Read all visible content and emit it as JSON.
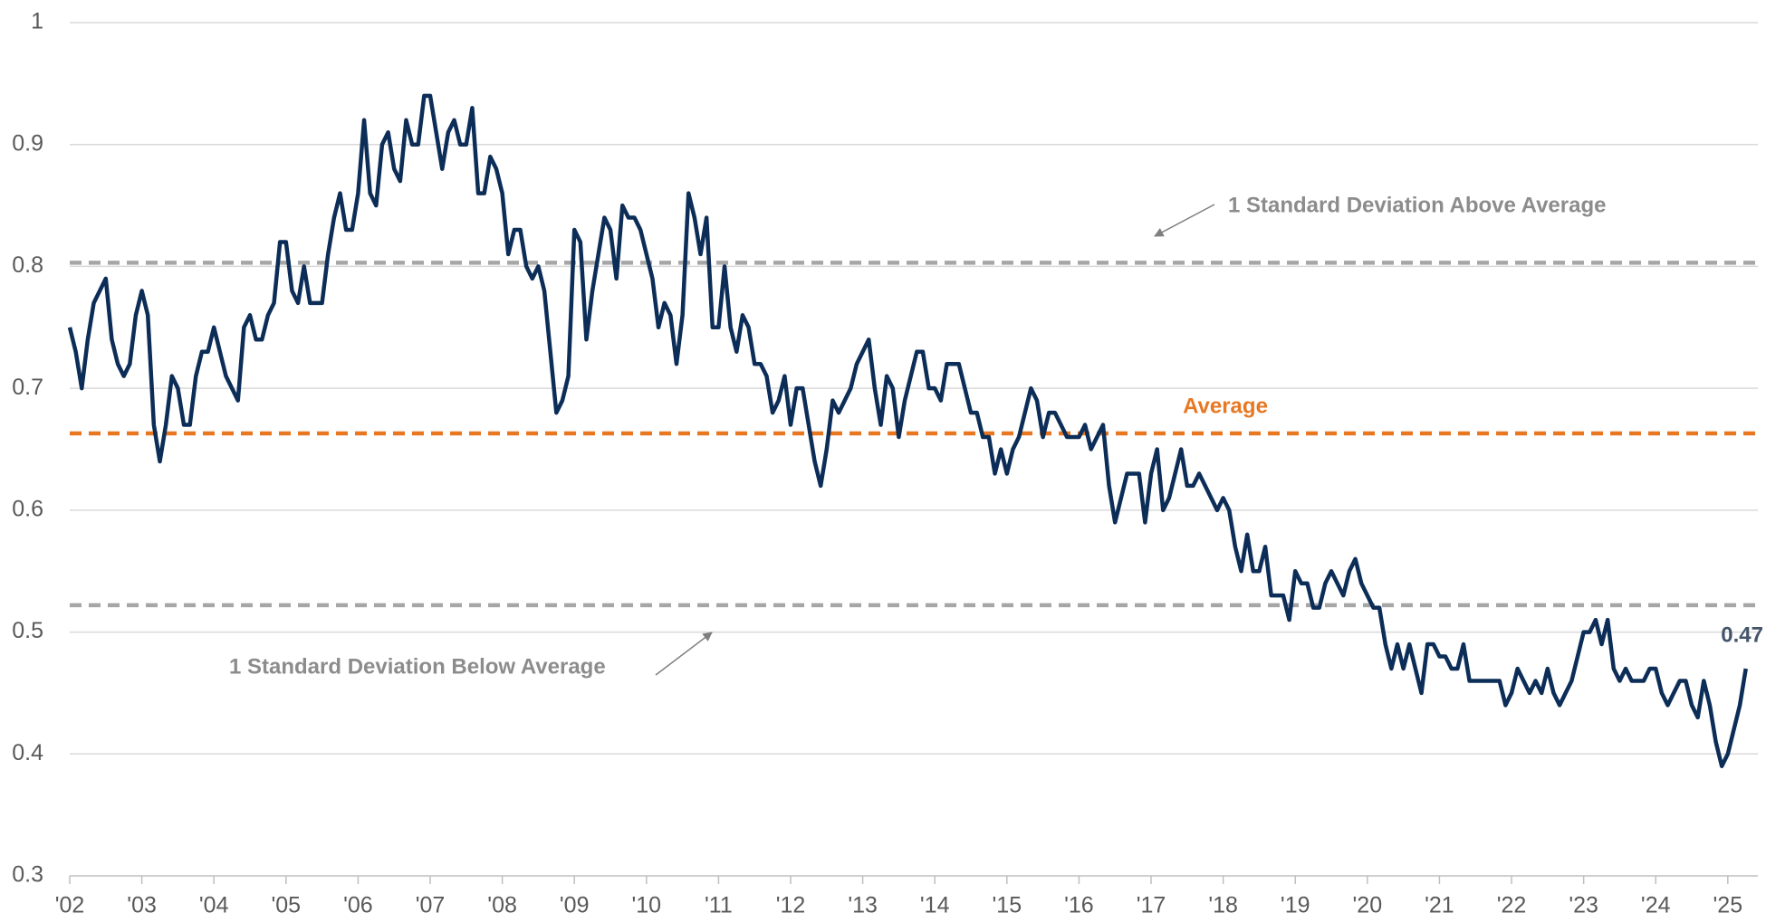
{
  "chart_data": {
    "type": "line",
    "ylim": [
      0.3,
      1
    ],
    "yticks": [
      0.3,
      0.4,
      0.5,
      0.6,
      0.7,
      0.8,
      0.9,
      1
    ],
    "xlim": [
      0,
      281
    ],
    "xticks": [
      {
        "value": 0,
        "label": "'02"
      },
      {
        "value": 12,
        "label": "'03"
      },
      {
        "value": 24,
        "label": "'04"
      },
      {
        "value": 36,
        "label": "'05"
      },
      {
        "value": 48,
        "label": "'06"
      },
      {
        "value": 60,
        "label": "'07"
      },
      {
        "value": 72,
        "label": "'08"
      },
      {
        "value": 84,
        "label": "'09"
      },
      {
        "value": 96,
        "label": "'10"
      },
      {
        "value": 108,
        "label": "'11"
      },
      {
        "value": 120,
        "label": "'12"
      },
      {
        "value": 132,
        "label": "'13"
      },
      {
        "value": 144,
        "label": "'14"
      },
      {
        "value": 156,
        "label": "'15"
      },
      {
        "value": 168,
        "label": "'16"
      },
      {
        "value": 180,
        "label": "'17"
      },
      {
        "value": 192,
        "label": "'18"
      },
      {
        "value": 204,
        "label": "'19"
      },
      {
        "value": 216,
        "label": "'20"
      },
      {
        "value": 228,
        "label": "'21"
      },
      {
        "value": 240,
        "label": "'22"
      },
      {
        "value": 252,
        "label": "'23"
      },
      {
        "value": 264,
        "label": "'24"
      },
      {
        "value": 276,
        "label": "'25"
      }
    ],
    "grid": true,
    "reference_lines": [
      {
        "label": "1 Standard Deviation Above Average",
        "value": 0.803,
        "color": "#a6a6a6"
      },
      {
        "label": "Average",
        "value": 0.663,
        "color": "#e87722"
      },
      {
        "label": "1 Standard Deviation Below Average",
        "value": 0.522,
        "color": "#a6a6a6"
      }
    ],
    "series": [
      {
        "color": "#0c2d57",
        "x": [
          0,
          1,
          2,
          3,
          4,
          5,
          6,
          7,
          8,
          9,
          10,
          11,
          12,
          13,
          14,
          15,
          16,
          17,
          18,
          19,
          20,
          21,
          22,
          23,
          24,
          25,
          26,
          27,
          28,
          29,
          30,
          31,
          32,
          33,
          34,
          35,
          36,
          37,
          38,
          39,
          40,
          41,
          42,
          43,
          44,
          45,
          46,
          47,
          48,
          49,
          50,
          51,
          52,
          53,
          54,
          55,
          56,
          57,
          58,
          59,
          60,
          61,
          62,
          63,
          64,
          65,
          66,
          67,
          68,
          69,
          70,
          71,
          72,
          73,
          74,
          75,
          76,
          77,
          78,
          79,
          80,
          81,
          82,
          83,
          84,
          85,
          86,
          87,
          88,
          89,
          90,
          91,
          92,
          93,
          94,
          95,
          96,
          97,
          98,
          99,
          100,
          101,
          102,
          103,
          104,
          105,
          106,
          107,
          108,
          109,
          110,
          111,
          112,
          113,
          114,
          115,
          116,
          117,
          118,
          119,
          120,
          121,
          122,
          123,
          124,
          125,
          126,
          127,
          128,
          129,
          130,
          131,
          132,
          133,
          134,
          135,
          136,
          137,
          138,
          139,
          140,
          141,
          142,
          143,
          144,
          145,
          146,
          147,
          148,
          149,
          150,
          151,
          152,
          153,
          154,
          155,
          156,
          157,
          158,
          159,
          160,
          161,
          162,
          163,
          164,
          165,
          166,
          167,
          168,
          169,
          170,
          171,
          172,
          173,
          174,
          175,
          176,
          177,
          178,
          179,
          180,
          181,
          182,
          183,
          184,
          185,
          186,
          187,
          188,
          189,
          190,
          191,
          192,
          193,
          194,
          195,
          196,
          197,
          198,
          199,
          200,
          201,
          202,
          203,
          204,
          205,
          206,
          207,
          208,
          209,
          210,
          211,
          212,
          213,
          214,
          215,
          216,
          217,
          218,
          219,
          220,
          221,
          222,
          223,
          224,
          225,
          226,
          227,
          228,
          229,
          230,
          231,
          232,
          233,
          234,
          235,
          236,
          237,
          238,
          239,
          240,
          241,
          242,
          243,
          244,
          245,
          246,
          247,
          248,
          249,
          250,
          251,
          252,
          253,
          254,
          255,
          256,
          257,
          258,
          259,
          260,
          261,
          262,
          263,
          264,
          265,
          266,
          267,
          268,
          269,
          270,
          271,
          272,
          273,
          274,
          275,
          276,
          277,
          278,
          279
        ],
        "values": [
          0.75,
          0.73,
          0.7,
          0.74,
          0.77,
          0.78,
          0.79,
          0.74,
          0.72,
          0.71,
          0.72,
          0.76,
          0.78,
          0.76,
          0.67,
          0.64,
          0.67,
          0.71,
          0.7,
          0.67,
          0.67,
          0.71,
          0.73,
          0.73,
          0.75,
          0.73,
          0.71,
          0.7,
          0.69,
          0.75,
          0.76,
          0.74,
          0.74,
          0.76,
          0.77,
          0.82,
          0.82,
          0.78,
          0.77,
          0.8,
          0.77,
          0.77,
          0.77,
          0.81,
          0.84,
          0.86,
          0.83,
          0.83,
          0.86,
          0.92,
          0.86,
          0.85,
          0.9,
          0.91,
          0.88,
          0.87,
          0.92,
          0.9,
          0.9,
          0.94,
          0.94,
          0.91,
          0.88,
          0.91,
          0.92,
          0.9,
          0.9,
          0.93,
          0.86,
          0.86,
          0.89,
          0.88,
          0.86,
          0.81,
          0.83,
          0.83,
          0.8,
          0.79,
          0.8,
          0.78,
          0.73,
          0.68,
          0.69,
          0.71,
          0.83,
          0.82,
          0.74,
          0.78,
          0.81,
          0.84,
          0.83,
          0.79,
          0.85,
          0.84,
          0.84,
          0.83,
          0.81,
          0.79,
          0.75,
          0.77,
          0.76,
          0.72,
          0.76,
          0.86,
          0.84,
          0.81,
          0.84,
          0.75,
          0.75,
          0.8,
          0.75,
          0.73,
          0.76,
          0.75,
          0.72,
          0.72,
          0.71,
          0.68,
          0.69,
          0.71,
          0.67,
          0.7,
          0.7,
          0.67,
          0.64,
          0.62,
          0.65,
          0.69,
          0.68,
          0.69,
          0.7,
          0.72,
          0.73,
          0.74,
          0.7,
          0.67,
          0.71,
          0.7,
          0.66,
          0.69,
          0.71,
          0.73,
          0.73,
          0.7,
          0.7,
          0.69,
          0.72,
          0.72,
          0.72,
          0.7,
          0.68,
          0.68,
          0.66,
          0.66,
          0.63,
          0.65,
          0.63,
          0.65,
          0.66,
          0.68,
          0.7,
          0.69,
          0.66,
          0.68,
          0.68,
          0.67,
          0.66,
          0.66,
          0.66,
          0.67,
          0.65,
          0.66,
          0.67,
          0.62,
          0.59,
          0.61,
          0.63,
          0.63,
          0.63,
          0.59,
          0.63,
          0.65,
          0.6,
          0.61,
          0.63,
          0.65,
          0.62,
          0.62,
          0.63,
          0.62,
          0.61,
          0.6,
          0.61,
          0.6,
          0.57,
          0.55,
          0.58,
          0.55,
          0.55,
          0.57,
          0.53,
          0.53,
          0.53,
          0.51,
          0.55,
          0.54,
          0.54,
          0.52,
          0.52,
          0.54,
          0.55,
          0.54,
          0.53,
          0.55,
          0.56,
          0.54,
          0.53,
          0.52,
          0.52,
          0.49,
          0.47,
          0.49,
          0.47,
          0.49,
          0.47,
          0.45,
          0.49,
          0.49,
          0.48,
          0.48,
          0.47,
          0.47,
          0.49,
          0.46,
          0.46,
          0.46,
          0.46,
          0.46,
          0.46,
          0.44,
          0.45,
          0.47,
          0.46,
          0.45,
          0.46,
          0.45,
          0.47,
          0.45,
          0.44,
          0.45,
          0.46,
          0.48,
          0.5,
          0.5,
          0.51,
          0.49,
          0.51,
          0.47,
          0.46,
          0.47,
          0.46,
          0.46,
          0.46,
          0.47,
          0.47,
          0.45,
          0.44,
          0.45,
          0.46,
          0.46,
          0.44,
          0.43,
          0.46,
          0.44,
          0.41,
          0.39,
          0.4,
          0.42,
          0.44,
          0.47
        ]
      }
    ]
  }
}
